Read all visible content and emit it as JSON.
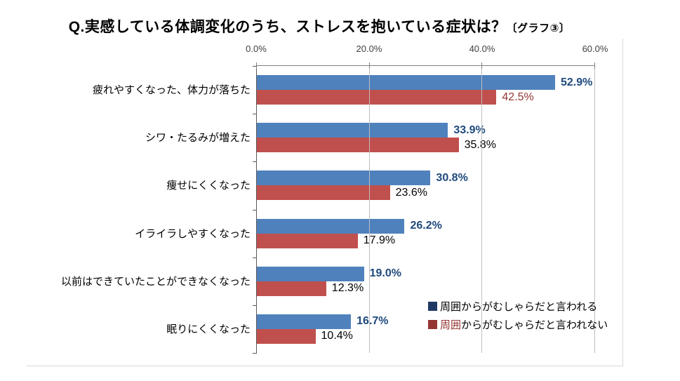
{
  "title": {
    "main": "Q.実感している体調変化のうち、ストレスを抱いている症状は？",
    "suffix": "〔グラフ③〕"
  },
  "chart_data": {
    "type": "bar",
    "orientation": "horizontal",
    "title": "Q.実感している体調変化のうち、ストレスを抱いている症状は？〔グラフ③〕",
    "categories": [
      "疲れやすくなった、体力が落ちた",
      "シワ・たるみが増えた",
      "痩せにくくなった",
      "イライラしやすくなった",
      "以前はできていたことができなくなった",
      "眠りにくくなった"
    ],
    "series": [
      {
        "name": "周囲からがむしゃらだと言われる",
        "color": "#4F81BD",
        "label_color": "#1F497D",
        "values": [
          52.9,
          33.9,
          30.8,
          26.2,
          19.0,
          16.7
        ]
      },
      {
        "name": "周囲からがむしゃらだと言われない",
        "color": "#C0504D",
        "label_color": "#000000",
        "label_color_first": "#943634",
        "values": [
          42.5,
          35.8,
          23.6,
          17.9,
          12.3,
          10.4
        ]
      }
    ],
    "x_ticks": [
      "0.0%",
      "20.0%",
      "40.0%",
      "60.0%"
    ],
    "xlim": [
      0,
      60
    ],
    "axis_position": "top",
    "gridlines": true,
    "legend_position": "inside-bottom-right"
  },
  "legend": {
    "items": [
      {
        "swatch_color": "#1F3864",
        "prefix": "",
        "prefix_color": "",
        "text": "周囲からがむしゃらだと言われる"
      },
      {
        "swatch_color": "#943634",
        "prefix": "周囲",
        "prefix_color": "#943634",
        "text": "からがむしゃらだと言われない"
      }
    ]
  }
}
